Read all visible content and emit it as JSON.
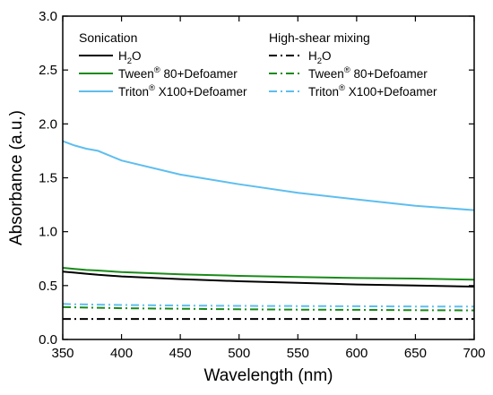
{
  "chart_data": {
    "type": "line",
    "xlabel": "Wavelength (nm)",
    "ylabel": "Absorbance (a.u.)",
    "xlim": [
      350,
      700
    ],
    "ylim": [
      0.0,
      3.0
    ],
    "x_ticks": [
      "350",
      "400",
      "450",
      "500",
      "550",
      "600",
      "650",
      "700"
    ],
    "y_ticks": [
      "0.0",
      "0.5",
      "1.0",
      "1.5",
      "2.0",
      "2.5",
      "3.0"
    ],
    "grid": false,
    "legend": {
      "position": "top",
      "groups": [
        {
          "title": "Sonication",
          "entries": [
            {
              "base": "H",
              "sub": "2",
              "rest": "O"
            },
            {
              "base": "Tween",
              "sup": "®",
              "rest": " 80+Defoamer"
            },
            {
              "base": "Triton",
              "sup": "®",
              "rest": " X100+Defoamer"
            }
          ]
        },
        {
          "title": "High-shear mixing",
          "entries": [
            {
              "base": "H",
              "sub": "2",
              "rest": "O"
            },
            {
              "base": "Tween",
              "sup": "®",
              "rest": " 80+Defoamer"
            },
            {
              "base": "Triton",
              "sup": "®",
              "rest": " X100+Defoamer"
            }
          ]
        }
      ]
    },
    "x": [
      350,
      360,
      370,
      380,
      400,
      450,
      500,
      550,
      600,
      650,
      700
    ],
    "series": [
      {
        "group": "Sonication",
        "color": "#000000",
        "dash": "solid",
        "values": [
          0.63,
          0.62,
          0.61,
          0.6,
          0.585,
          0.56,
          0.54,
          0.525,
          0.51,
          0.5,
          0.49
        ]
      },
      {
        "group": "Sonication",
        "color": "#1a8a1a",
        "dash": "solid",
        "values": [
          0.665,
          0.655,
          0.645,
          0.64,
          0.625,
          0.605,
          0.59,
          0.58,
          0.57,
          0.565,
          0.555
        ]
      },
      {
        "group": "Sonication",
        "color": "#5ebeef",
        "dash": "solid",
        "values": [
          1.84,
          1.8,
          1.77,
          1.75,
          1.66,
          1.53,
          1.44,
          1.36,
          1.3,
          1.24,
          1.2
        ]
      },
      {
        "group": "High-shear mixing",
        "color": "#000000",
        "dash": "dashdot",
        "values": [
          0.19,
          0.19,
          0.19,
          0.19,
          0.19,
          0.19,
          0.19,
          0.19,
          0.19,
          0.19,
          0.19
        ]
      },
      {
        "group": "High-shear mixing",
        "color": "#1a8a1a",
        "dash": "dashdot",
        "values": [
          0.3,
          0.298,
          0.296,
          0.294,
          0.29,
          0.285,
          0.28,
          0.277,
          0.275,
          0.272,
          0.27
        ]
      },
      {
        "group": "High-shear mixing",
        "color": "#5ebeef",
        "dash": "dashdot",
        "values": [
          0.33,
          0.327,
          0.325,
          0.323,
          0.32,
          0.315,
          0.312,
          0.31,
          0.308,
          0.306,
          0.305
        ]
      }
    ]
  }
}
